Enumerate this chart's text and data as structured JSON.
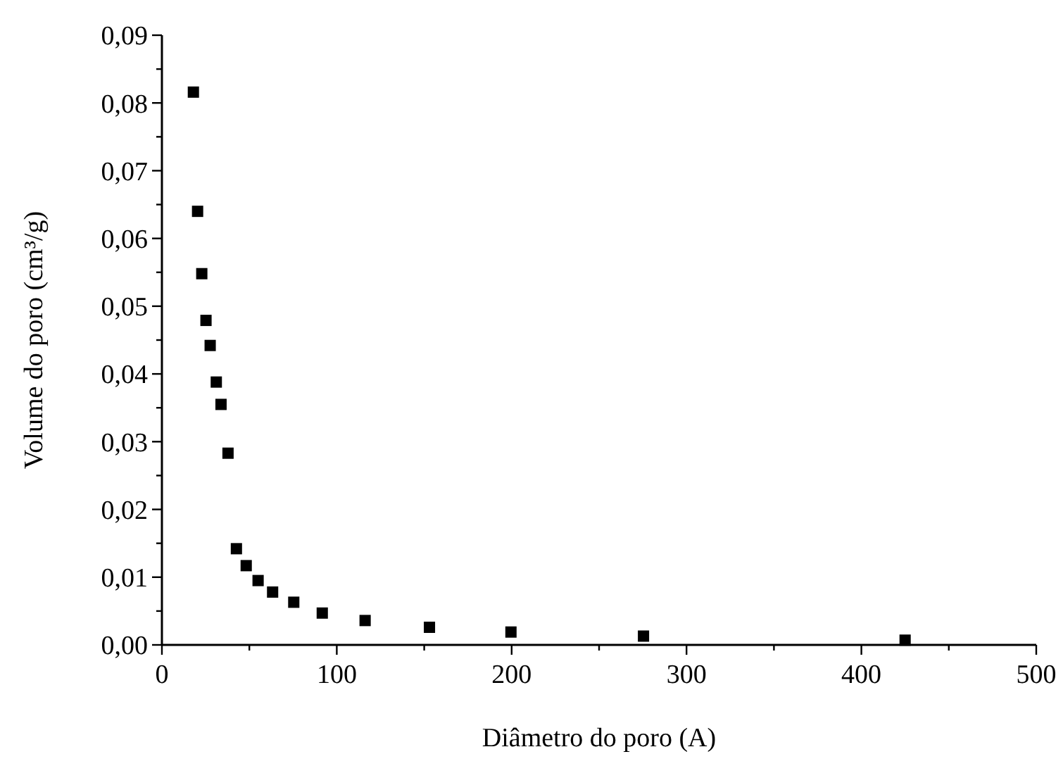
{
  "chart_data": {
    "type": "scatter",
    "xlabel": "Diâmetro do poro (A)",
    "ylabel": "Volume do poro (cm³/g)",
    "marker": "square",
    "xlim": [
      0,
      500
    ],
    "ylim": [
      0,
      0.09
    ],
    "xticks": [
      0,
      {
        "value": 50,
        "label": null
      },
      100,
      {
        "value": 150,
        "label": null
      },
      200,
      {
        "value": 250,
        "label": null
      },
      300,
      {
        "value": 350,
        "label": null
      },
      400,
      {
        "value": 450,
        "label": null
      },
      500
    ],
    "yticks": [
      {
        "value": 0,
        "label": "0,00"
      },
      {
        "value": 0.005,
        "label": null
      },
      {
        "value": 0.01,
        "label": "0,01"
      },
      {
        "value": 0.015,
        "label": null
      },
      {
        "value": 0.02,
        "label": "0,02"
      },
      {
        "value": 0.025,
        "label": null
      },
      {
        "value": 0.03,
        "label": "0,03"
      },
      {
        "value": 0.035,
        "label": null
      },
      {
        "value": 0.04,
        "label": "0,04"
      },
      {
        "value": 0.045,
        "label": null
      },
      {
        "value": 0.05,
        "label": "0,05"
      },
      {
        "value": 0.055,
        "label": null
      },
      {
        "value": 0.06,
        "label": "0,06"
      },
      {
        "value": 0.065,
        "label": null
      },
      {
        "value": 0.07,
        "label": "0,07"
      },
      {
        "value": 0.075,
        "label": null
      },
      {
        "value": 0.08,
        "label": "0,08"
      },
      {
        "value": 0.085,
        "label": null
      },
      {
        "value": 0.09,
        "label": "0,09"
      }
    ],
    "x": [
      18,
      20.4,
      22.8,
      25.2,
      27.6,
      31.1,
      33.8,
      37.8,
      42.6,
      48.2,
      55,
      63.3,
      75.4,
      91.7,
      116.2,
      153,
      199.6,
      275.4,
      425
    ],
    "series": [
      {
        "color": "#000000",
        "values": [
          0.0816,
          0.064,
          0.0548,
          0.0479,
          0.0442,
          0.0388,
          0.0355,
          0.0283,
          0.0142,
          0.0117,
          0.0095,
          0.0078,
          0.0063,
          0.0047,
          0.0036,
          0.0026,
          0.0019,
          0.0013,
          0.0007
        ]
      }
    ]
  }
}
